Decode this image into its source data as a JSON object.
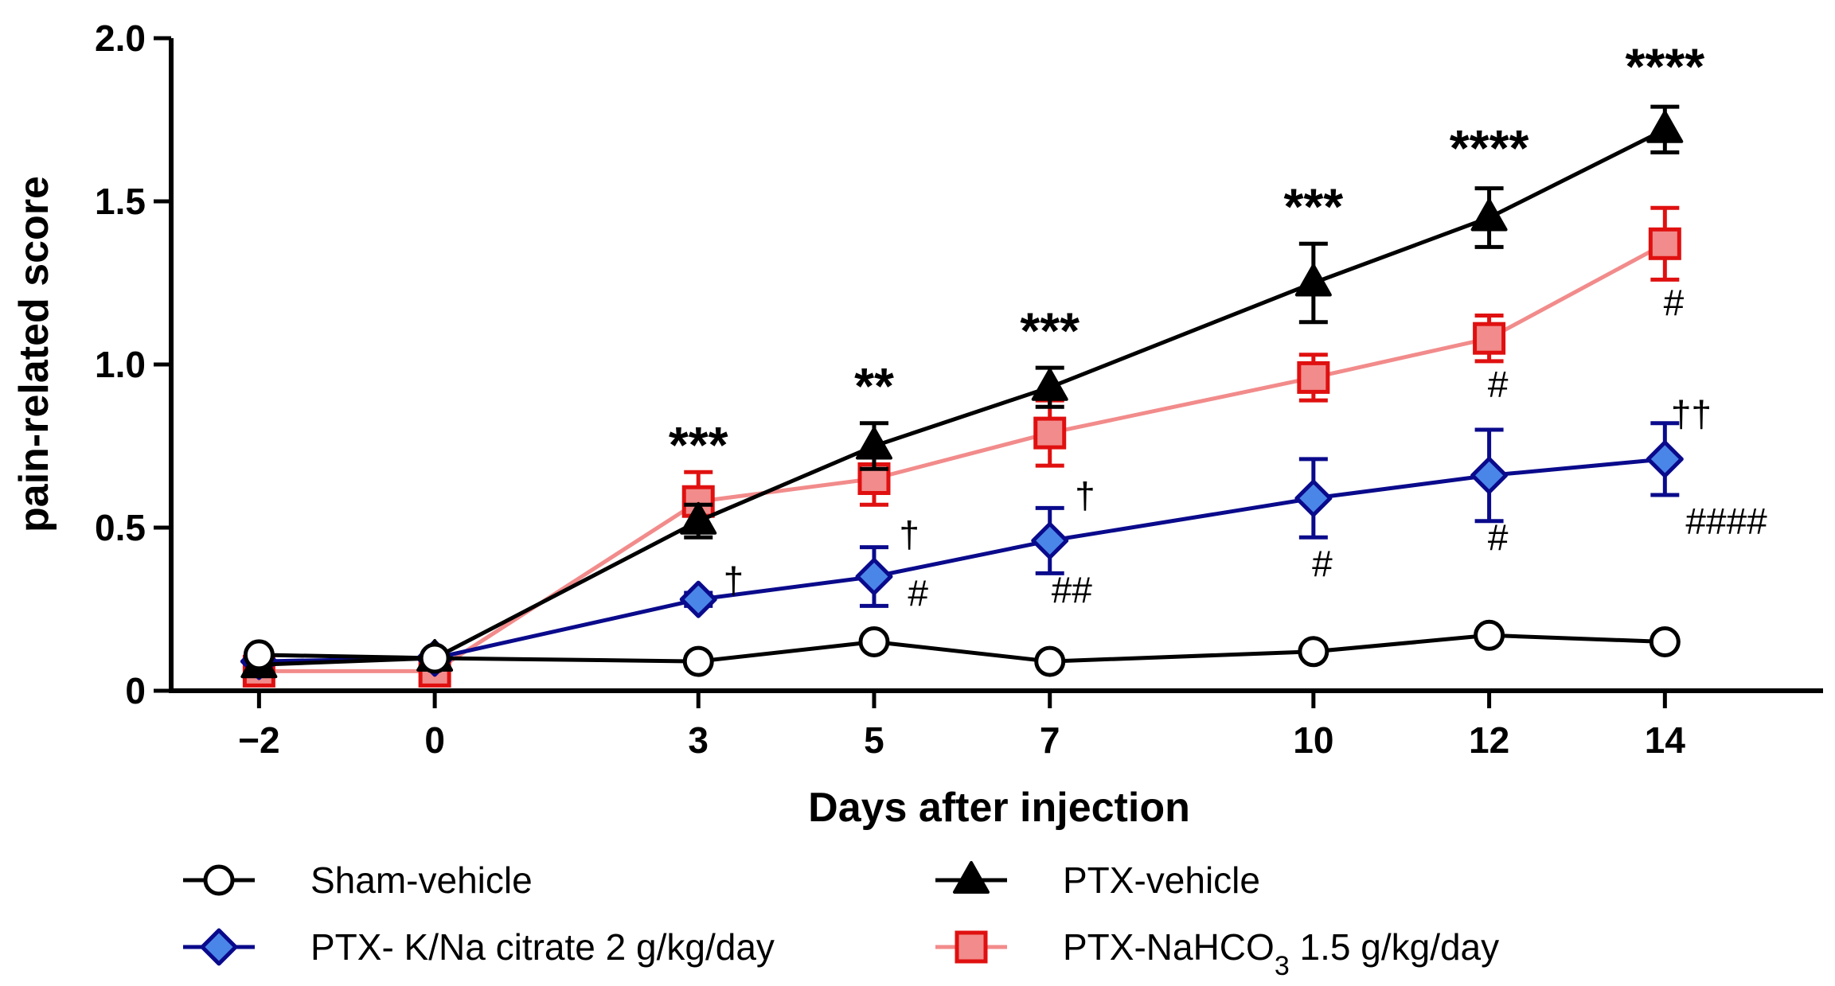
{
  "chart_data": {
    "type": "line",
    "xlabel": "Days after injection",
    "ylabel": "pain-related score",
    "x": [
      -2,
      0,
      3,
      5,
      7,
      10,
      12,
      14
    ],
    "xtick_labels": [
      "−2",
      "0",
      "3",
      "5",
      "7",
      "10",
      "12",
      "14"
    ],
    "ylim": [
      0,
      2.0
    ],
    "yticks": [
      0,
      0.5,
      1.0,
      1.5,
      2.0
    ],
    "ytick_labels": [
      "0",
      "0.5",
      "1.0",
      "1.5",
      "2.0"
    ],
    "grid": false,
    "legend_position": "bottom",
    "series": [
      {
        "name": "Sham-vehicle",
        "marker": "circle",
        "line_color": "#000000",
        "marker_fill": "#ffffff",
        "marker_stroke": "#000000",
        "values": [
          0.11,
          0.1,
          0.09,
          0.15,
          0.09,
          0.12,
          0.17,
          0.15
        ],
        "errors": [
          0,
          0,
          0,
          0,
          0,
          0,
          0,
          0
        ]
      },
      {
        "name": "PTX-vehicle",
        "marker": "triangle",
        "line_color": "#000000",
        "marker_fill": "#000000",
        "marker_stroke": "#000000",
        "values": [
          0.08,
          0.1,
          0.52,
          0.75,
          0.93,
          1.25,
          1.45,
          1.72
        ],
        "errors": [
          0,
          0,
          0.05,
          0.07,
          0.06,
          0.12,
          0.09,
          0.07
        ]
      },
      {
        "name": "PTX- K/Na citrate 2 g/kg/day",
        "marker": "diamond",
        "line_color": "#0a0a8c",
        "marker_fill": "#4a86e8",
        "marker_stroke": "#0a0a8c",
        "values": [
          0.09,
          0.1,
          0.28,
          0.35,
          0.46,
          0.59,
          0.66,
          0.71
        ],
        "errors": [
          0,
          0,
          0.02,
          0.09,
          0.1,
          0.12,
          0.14,
          0.11
        ]
      },
      {
        "name": "PTX-NaHCO3 1.5 g/kg/day",
        "name_main": "PTX-NaHCO",
        "name_sub": "3",
        "name_tail": " 1.5 g/kg/day",
        "marker": "square",
        "line_color": "#f28b8b",
        "marker_fill": "#f28b8b",
        "marker_stroke": "#e01010",
        "values": [
          0.06,
          0.06,
          0.58,
          0.65,
          0.79,
          0.96,
          1.08,
          1.37
        ],
        "errors": [
          0,
          0,
          0.09,
          0.08,
          0.1,
          0.07,
          0.07,
          0.11
        ]
      }
    ],
    "annotations": [
      {
        "x": 3,
        "y": 0.7,
        "text": "***",
        "style": "stars"
      },
      {
        "x": 5,
        "y": 0.88,
        "text": "**",
        "style": "stars"
      },
      {
        "x": 7,
        "y": 1.05,
        "text": "***",
        "style": "stars"
      },
      {
        "x": 10,
        "y": 1.43,
        "text": "***",
        "style": "stars"
      },
      {
        "x": 12,
        "y": 1.61,
        "text": "****",
        "style": "stars"
      },
      {
        "x": 14,
        "y": 1.86,
        "text": "****",
        "style": "stars"
      },
      {
        "x": 3.4,
        "y": 0.3,
        "text": "†",
        "style": "plain"
      },
      {
        "x": 5.4,
        "y": 0.44,
        "text": "†",
        "style": "plain"
      },
      {
        "x": 7.4,
        "y": 0.56,
        "text": "†",
        "style": "plain"
      },
      {
        "x": 14.3,
        "y": 0.81,
        "text": "††",
        "style": "plain"
      },
      {
        "x": 5.5,
        "y": 0.26,
        "text": "#",
        "style": "plain"
      },
      {
        "x": 7.25,
        "y": 0.27,
        "text": "##",
        "style": "plain"
      },
      {
        "x": 10.1,
        "y": 0.35,
        "text": "#",
        "style": "plain"
      },
      {
        "x": 12.1,
        "y": 0.43,
        "text": "#",
        "style": "plain"
      },
      {
        "x": 14.7,
        "y": 0.48,
        "text": "####",
        "style": "plain"
      },
      {
        "x": 12.1,
        "y": 0.9,
        "text": "#",
        "style": "plain"
      },
      {
        "x": 14.1,
        "y": 1.15,
        "text": "#",
        "style": "plain"
      }
    ]
  }
}
